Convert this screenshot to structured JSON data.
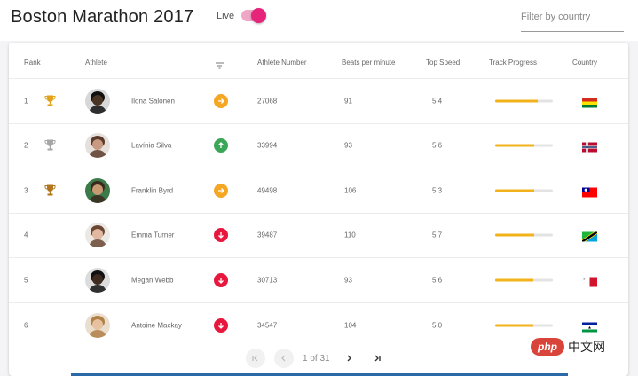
{
  "header": {
    "title": "Boston Marathon 2017",
    "live_label": "Live",
    "live_on": true,
    "filter_placeholder": "Filter by country"
  },
  "table": {
    "columns": {
      "rank": "Rank",
      "athlete": "Athlete",
      "athlete_number": "Athlete Number",
      "bpm": "Beats per minute",
      "top_speed": "Top Speed",
      "track_progress": "Track Progress",
      "country": "Country"
    },
    "rows": [
      {
        "rank": "1",
        "trophy": "gold-trophy-icon",
        "name": "Ilona Salonen",
        "trend": "right",
        "trend_color": "#f5a623",
        "number": "27068",
        "bpm": "91",
        "speed": "5.4",
        "progress": 0.74,
        "flag": "bolivia-flag-icon"
      },
      {
        "rank": "2",
        "trophy": "silver-trophy-icon",
        "name": "Lavínia Silva",
        "trend": "up",
        "trend_color": "#3aa757",
        "number": "33994",
        "bpm": "93",
        "speed": "5.6",
        "progress": 0.68,
        "flag": "norway-flag-icon"
      },
      {
        "rank": "3",
        "trophy": "bronze-trophy-icon",
        "name": "Franklin Byrd",
        "trend": "right",
        "trend_color": "#f5a623",
        "number": "49498",
        "bpm": "106",
        "speed": "5.3",
        "progress": 0.68,
        "flag": "taiwan-flag-icon"
      },
      {
        "rank": "4",
        "trophy": "",
        "name": "Emma Turner",
        "trend": "down",
        "trend_color": "#e8173e",
        "number": "39487",
        "bpm": "110",
        "speed": "5.7",
        "progress": 0.68,
        "flag": "tanzania-flag-icon"
      },
      {
        "rank": "5",
        "trophy": "",
        "name": "Megan Webb",
        "trend": "down",
        "trend_color": "#e8173e",
        "number": "30713",
        "bpm": "93",
        "speed": "5.6",
        "progress": 0.66,
        "flag": "malta-flag-icon"
      },
      {
        "rank": "6",
        "trophy": "",
        "name": "Antoine Mackay",
        "trend": "down",
        "trend_color": "#e8173e",
        "number": "34547",
        "bpm": "104",
        "speed": "5.0",
        "progress": 0.66,
        "flag": "lesotho-flag-icon"
      }
    ]
  },
  "pagination": {
    "label": "1 of 31"
  },
  "watermark": {
    "badge": "php",
    "text": "中文网"
  },
  "colors": {
    "accent": "#e6247a",
    "progress": "#f2b21a",
    "gold": "#e0a21a",
    "silver": "#a6a6a6",
    "bronze": "#b3751c"
  }
}
